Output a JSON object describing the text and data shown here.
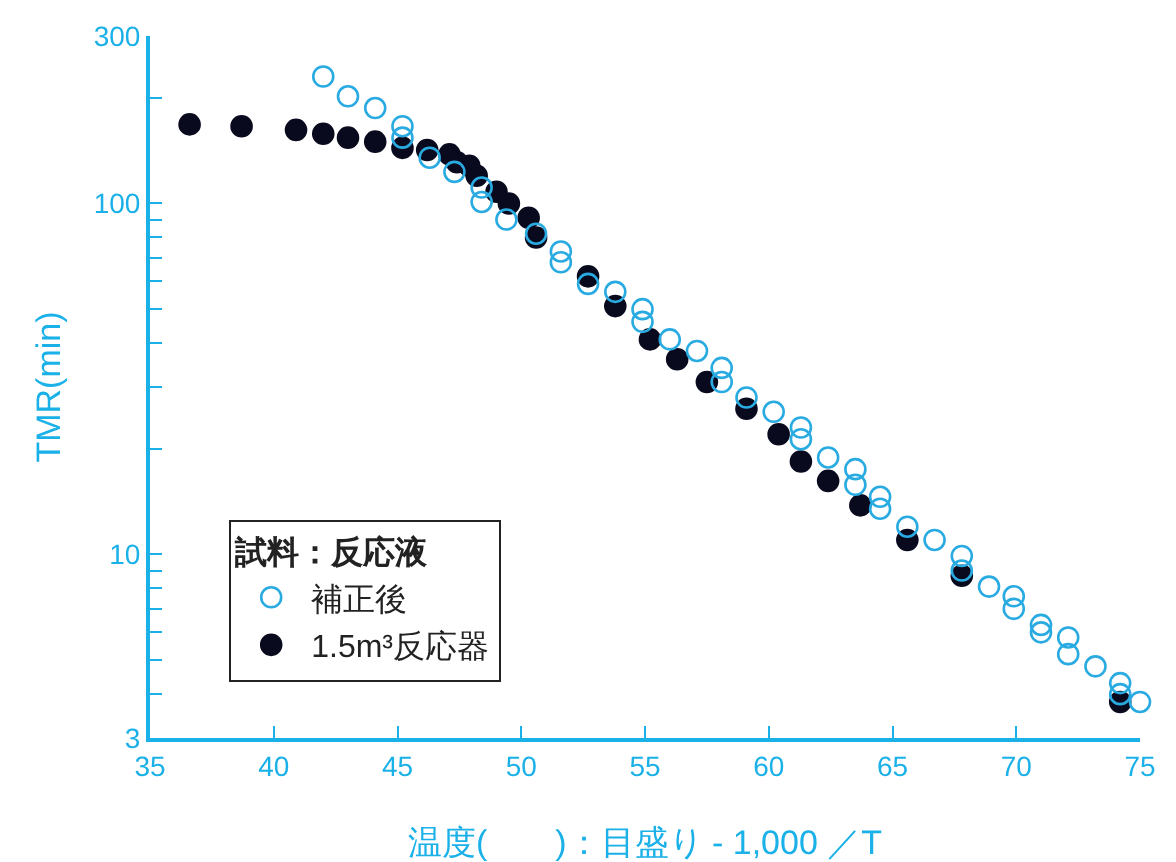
{
  "chart_data": {
    "type": "scatter",
    "xlabel": "温度(　　)：目盛り - 1,000 ／T",
    "ylabel": "TMR(min)",
    "legend_title": "試料：反応液",
    "log": "y",
    "legend": "bottom left",
    "grid": false,
    "xlim": [
      35,
      75
    ],
    "xticks": [
      35,
      40,
      45,
      50,
      55,
      60,
      65,
      70,
      75
    ],
    "ylim": [
      3,
      300
    ],
    "yticks": [
      3,
      {
        "value": 4,
        "label": null
      },
      {
        "value": 5,
        "label": null
      },
      {
        "value": 6,
        "label": null
      },
      {
        "value": 7,
        "label": null
      },
      {
        "value": 8,
        "label": null
      },
      {
        "value": 9,
        "label": null
      },
      10,
      {
        "value": 20,
        "label": null
      },
      {
        "value": 30,
        "label": null
      },
      {
        "value": 40,
        "label": null
      },
      {
        "value": 50,
        "label": null
      },
      {
        "value": 60,
        "label": null
      },
      {
        "value": 70,
        "label": null
      },
      {
        "value": 80,
        "label": null
      },
      {
        "value": 90,
        "label": null
      },
      100,
      {
        "value": 200,
        "label": null
      },
      300
    ],
    "series": [
      {
        "name": "補正後",
        "color": "#29abe2",
        "marker": "circle-open",
        "x": [
          42.0,
          43.0,
          44.1,
          45.2,
          45.2,
          46.3,
          47.3,
          48.4,
          48.4,
          49.4,
          50.6,
          51.6,
          51.6,
          52.7,
          53.8,
          54.9,
          54.9,
          56.0,
          57.1,
          58.1,
          58.1,
          59.1,
          60.2,
          61.3,
          61.3,
          62.4,
          63.5,
          63.5,
          64.5,
          64.5,
          65.6,
          66.7,
          67.8,
          67.8,
          68.9,
          69.9,
          69.9,
          71.0,
          71.0,
          72.1,
          72.1,
          73.2,
          74.2,
          74.2,
          75.0
        ],
        "values": [
          230,
          202,
          187,
          166,
          154,
          135,
          123,
          111,
          101,
          90,
          82,
          73,
          68,
          59,
          56,
          50,
          46,
          41,
          38,
          34,
          31,
          28,
          25.5,
          23,
          21.3,
          18.9,
          17.5,
          15.8,
          14.6,
          13.5,
          12.0,
          11.0,
          9.9,
          9.0,
          8.1,
          7.6,
          7.0,
          6.3,
          6.0,
          5.8,
          5.2,
          4.8,
          4.3,
          4.0,
          3.8
        ]
      },
      {
        "name": "1.5m³反応器",
        "color": "#0a0a1e",
        "marker": "circle",
        "x": [
          36.6,
          38.7,
          40.9,
          42.0,
          43.0,
          44.1,
          45.2,
          46.2,
          47.1,
          47.4,
          47.9,
          48.2,
          49.0,
          49.5,
          50.3,
          50.6,
          52.7,
          53.8,
          55.2,
          56.3,
          57.5,
          59.1,
          60.4,
          61.3,
          62.4,
          63.7,
          65.6,
          67.8,
          74.2
        ],
        "values": [
          168,
          166,
          162,
          158,
          154,
          150,
          144,
          142,
          138,
          131,
          128,
          120,
          108,
          100,
          91,
          80,
          62,
          51,
          41,
          36,
          31,
          26,
          22,
          18.4,
          16.2,
          13.8,
          11.0,
          8.7,
          3.8
        ]
      }
    ]
  }
}
